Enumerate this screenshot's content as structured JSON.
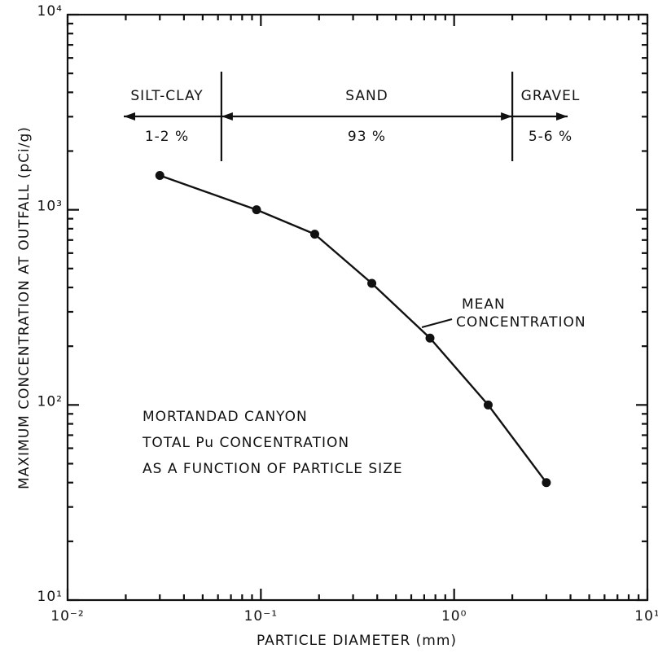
{
  "chart_data": {
    "type": "line",
    "x_label": "PARTICLE DIAMETER (mm)",
    "y_label": "MAXIMUM CONCENTRATION AT OUTFALL (pCi/g)",
    "xscale": "log",
    "yscale": "log",
    "xlim": [
      0.01,
      10
    ],
    "ylim": [
      10,
      10000
    ],
    "xticks": [
      {
        "value": 0.01,
        "label": "10⁻²"
      },
      {
        "value": 0.1,
        "label": "10⁻¹"
      },
      {
        "value": 1,
        "label": "10⁰"
      },
      {
        "value": 10,
        "label": "10¹"
      }
    ],
    "yticks": [
      {
        "value": 10,
        "label": "10¹"
      },
      {
        "value": 100,
        "label": "10²"
      },
      {
        "value": 1000,
        "label": "10³"
      },
      {
        "value": 10000,
        "label": "10⁴"
      }
    ],
    "series": [
      {
        "color": "#111111",
        "x": [
          0.03,
          0.095,
          0.19,
          0.375,
          0.75,
          1.5,
          3
        ],
        "values": [
          1500,
          1000,
          750,
          420,
          220,
          100,
          40
        ]
      }
    ],
    "series_annotation": [
      "MEAN",
      "CONCENTRATION"
    ],
    "region_boundaries": [
      0.0625,
      2
    ],
    "regions": [
      {
        "name": "SILT-CLAY",
        "share": "1-2 %"
      },
      {
        "name": "SAND",
        "share": "93 %"
      },
      {
        "name": "GRAVEL",
        "share": "5-6 %"
      }
    ],
    "note": [
      "MORTANDAD CANYON",
      "TOTAL Pu CONCENTRATION",
      "AS A FUNCTION OF PARTICLE SIZE"
    ]
  }
}
